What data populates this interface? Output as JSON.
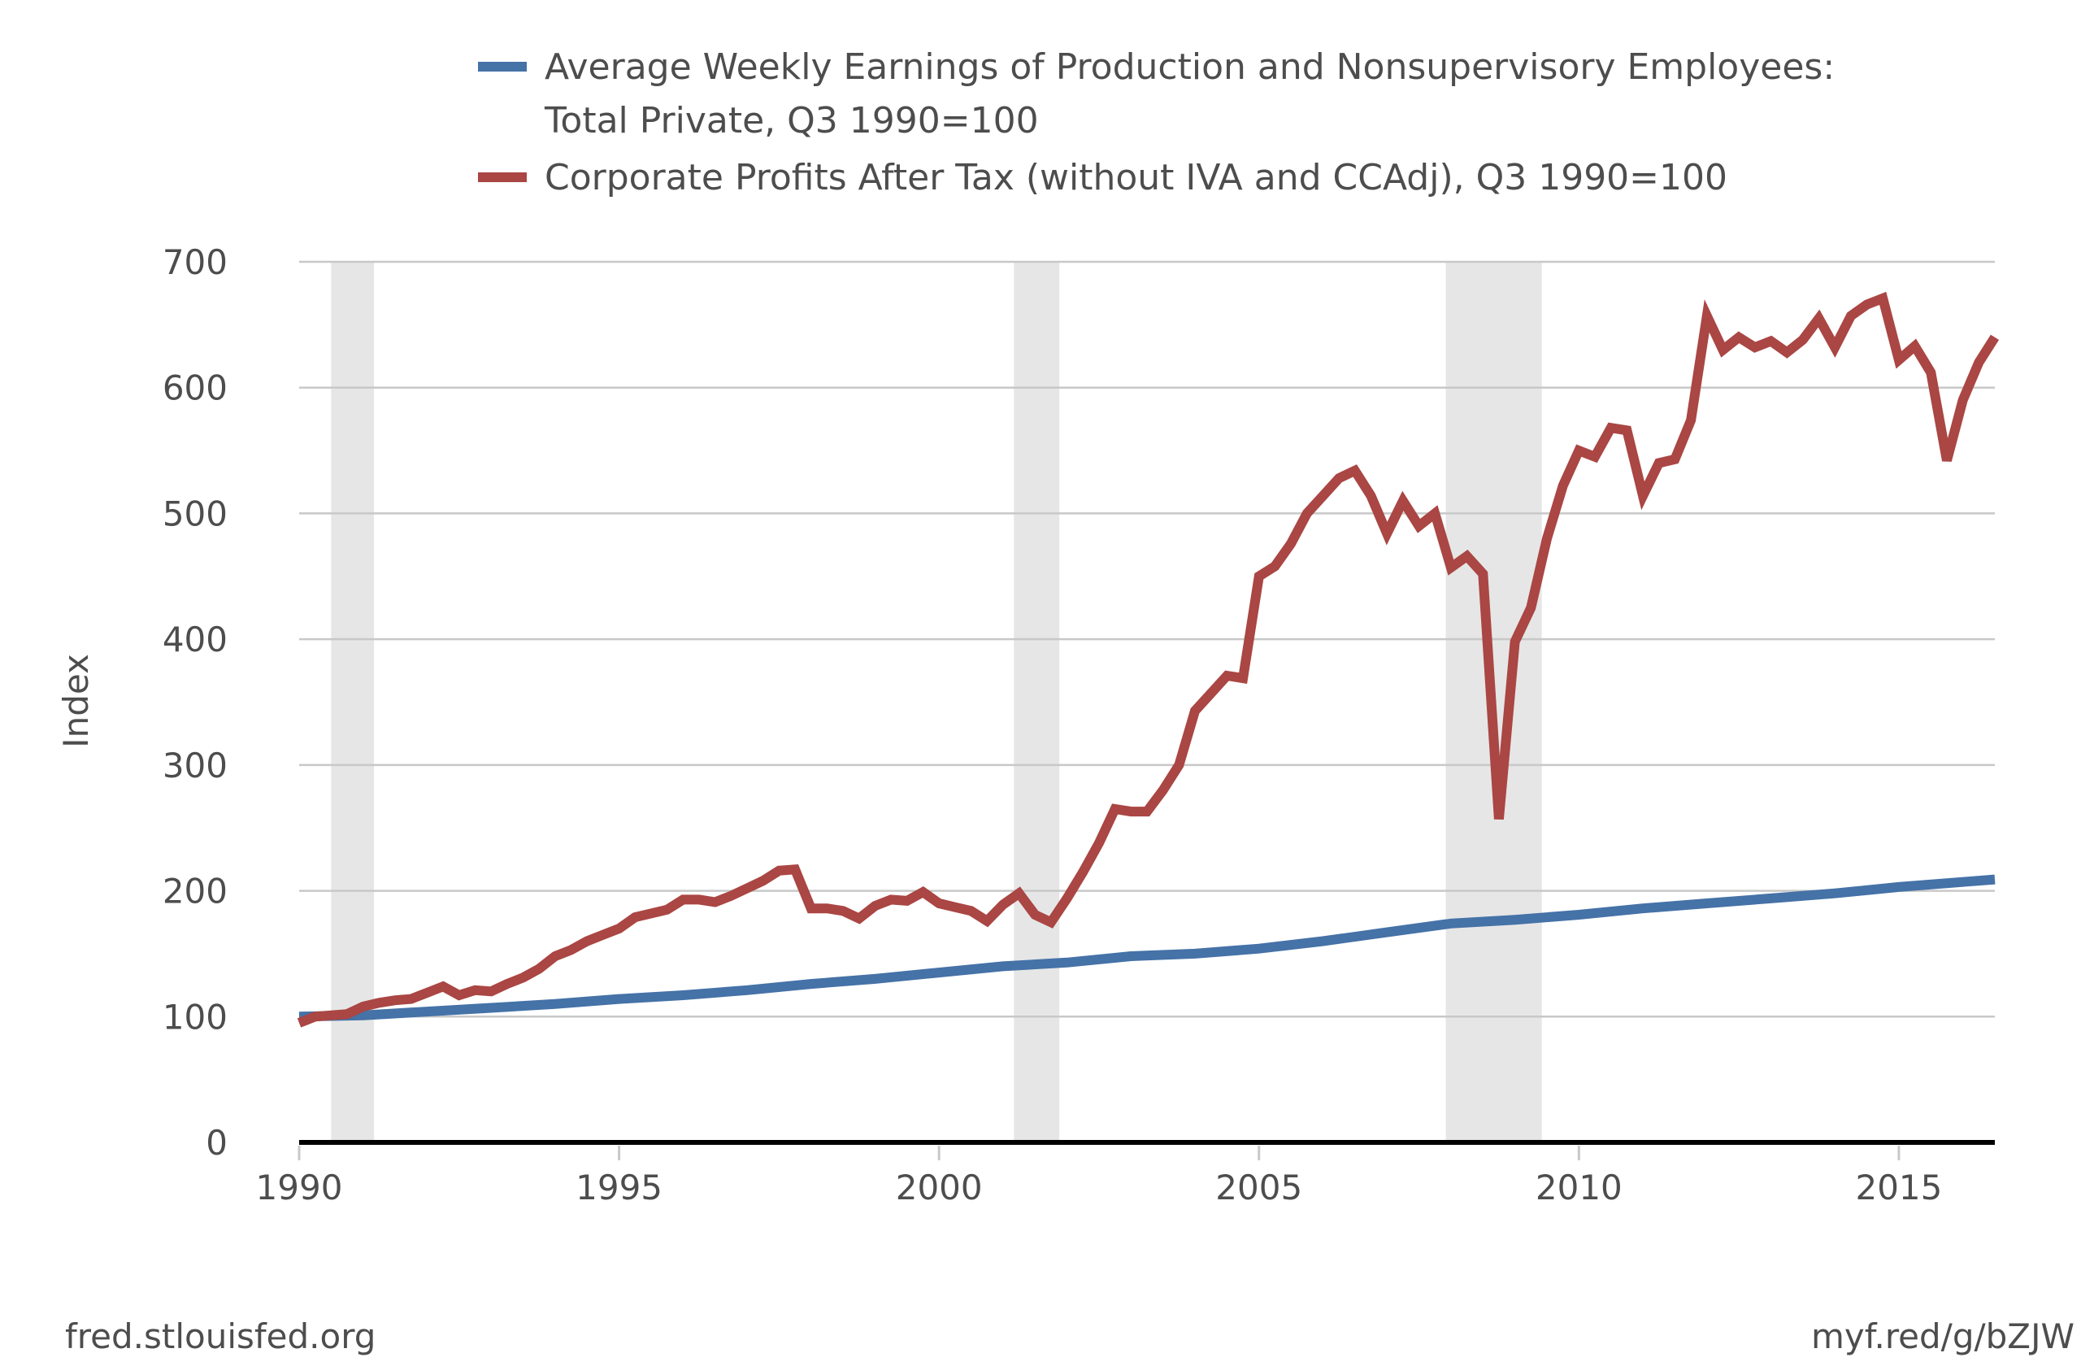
{
  "chart_data": {
    "type": "line",
    "title": "",
    "xlabel": "",
    "ylabel": "Index",
    "xlim": [
      1990.0,
      2016.5
    ],
    "ylim": [
      0,
      700
    ],
    "grid": true,
    "legend_position": "top",
    "y_ticks": [
      0,
      100,
      200,
      300,
      400,
      500,
      600,
      700
    ],
    "x_ticks": [
      1990,
      1995,
      2000,
      2005,
      2010,
      2015
    ],
    "recessions": [
      [
        1990.5,
        1991.17
      ],
      [
        2001.17,
        2001.88
      ],
      [
        2007.92,
        2009.42
      ]
    ],
    "series": [
      {
        "name": "Average Weekly Earnings of Production and Nonsupervisory Employees: Total Private, Q3 1990=100",
        "legend_lines": [
          "Average Weekly Earnings of Production and Nonsupervisory Employees:",
          "Total Private, Q3 1990=100"
        ],
        "color": "#4572a7",
        "points": [
          [
            1990.0,
            100
          ],
          [
            1991.0,
            101
          ],
          [
            1992.0,
            104
          ],
          [
            1993.0,
            107
          ],
          [
            1994.0,
            110
          ],
          [
            1995.0,
            114
          ],
          [
            1996.0,
            117
          ],
          [
            1997.0,
            121
          ],
          [
            1998.0,
            126
          ],
          [
            1999.0,
            130
          ],
          [
            2000.0,
            135
          ],
          [
            2001.0,
            140
          ],
          [
            2002.0,
            143
          ],
          [
            2003.0,
            148
          ],
          [
            2004.0,
            150
          ],
          [
            2005.0,
            154
          ],
          [
            2006.0,
            160
          ],
          [
            2007.0,
            167
          ],
          [
            2008.0,
            174
          ],
          [
            2009.0,
            177
          ],
          [
            2010.0,
            181
          ],
          [
            2011.0,
            186
          ],
          [
            2012.0,
            190
          ],
          [
            2013.0,
            194
          ],
          [
            2014.0,
            198
          ],
          [
            2015.0,
            203
          ],
          [
            2016.0,
            207
          ],
          [
            2016.5,
            209
          ]
        ]
      },
      {
        "name": "Corporate Profits After Tax (without IVA and CCAdj), Q3 1990=100",
        "legend_lines": [
          "Corporate Profits After Tax (without IVA and CCAdj), Q3 1990=100"
        ],
        "color": "#aa4643",
        "points": [
          [
            1990.0,
            95
          ],
          [
            1990.25,
            100
          ],
          [
            1990.5,
            101
          ],
          [
            1990.75,
            102
          ],
          [
            1991.0,
            108
          ],
          [
            1991.25,
            111
          ],
          [
            1991.5,
            113
          ],
          [
            1991.75,
            114
          ],
          [
            1992.0,
            119
          ],
          [
            1992.25,
            124
          ],
          [
            1992.5,
            117
          ],
          [
            1992.75,
            121
          ],
          [
            1993.0,
            120
          ],
          [
            1993.25,
            126
          ],
          [
            1993.5,
            131
          ],
          [
            1993.75,
            138
          ],
          [
            1994.0,
            148
          ],
          [
            1994.25,
            153
          ],
          [
            1994.5,
            160
          ],
          [
            1994.75,
            165
          ],
          [
            1995.0,
            170
          ],
          [
            1995.25,
            179
          ],
          [
            1995.5,
            182
          ],
          [
            1995.75,
            185
          ],
          [
            1996.0,
            193
          ],
          [
            1996.25,
            193
          ],
          [
            1996.5,
            191
          ],
          [
            1996.75,
            196
          ],
          [
            1997.0,
            202
          ],
          [
            1997.25,
            208
          ],
          [
            1997.5,
            216
          ],
          [
            1997.75,
            217
          ],
          [
            1998.0,
            186
          ],
          [
            1998.25,
            186
          ],
          [
            1998.5,
            184
          ],
          [
            1998.75,
            178
          ],
          [
            1999.0,
            188
          ],
          [
            1999.25,
            193
          ],
          [
            1999.5,
            192
          ],
          [
            1999.75,
            199
          ],
          [
            2000.0,
            190
          ],
          [
            2000.25,
            187
          ],
          [
            2000.5,
            184
          ],
          [
            2000.75,
            176
          ],
          [
            2001.0,
            189
          ],
          [
            2001.25,
            198
          ],
          [
            2001.5,
            181
          ],
          [
            2001.75,
            175
          ],
          [
            2002.0,
            194
          ],
          [
            2002.25,
            215
          ],
          [
            2002.5,
            238
          ],
          [
            2002.75,
            265
          ],
          [
            2003.0,
            263
          ],
          [
            2003.25,
            263
          ],
          [
            2003.5,
            280
          ],
          [
            2003.75,
            300
          ],
          [
            2004.0,
            343
          ],
          [
            2004.25,
            357
          ],
          [
            2004.5,
            371
          ],
          [
            2004.75,
            369
          ],
          [
            2005.0,
            450
          ],
          [
            2005.25,
            458
          ],
          [
            2005.5,
            476
          ],
          [
            2005.75,
            500
          ],
          [
            2006.0,
            514
          ],
          [
            2006.25,
            528
          ],
          [
            2006.5,
            534
          ],
          [
            2006.75,
            514
          ],
          [
            2007.0,
            484
          ],
          [
            2007.25,
            510
          ],
          [
            2007.5,
            490
          ],
          [
            2007.75,
            500
          ],
          [
            2008.0,
            457
          ],
          [
            2008.25,
            466
          ],
          [
            2008.5,
            452
          ],
          [
            2008.75,
            257
          ],
          [
            2009.0,
            398
          ],
          [
            2009.25,
            425
          ],
          [
            2009.5,
            480
          ],
          [
            2009.75,
            522
          ],
          [
            2010.0,
            550
          ],
          [
            2010.25,
            545
          ],
          [
            2010.5,
            568
          ],
          [
            2010.75,
            566
          ],
          [
            2011.0,
            514
          ],
          [
            2011.25,
            540
          ],
          [
            2011.5,
            543
          ],
          [
            2011.75,
            574
          ],
          [
            2012.0,
            657
          ],
          [
            2012.25,
            630
          ],
          [
            2012.5,
            640
          ],
          [
            2012.75,
            632
          ],
          [
            2013.0,
            637
          ],
          [
            2013.25,
            628
          ],
          [
            2013.5,
            638
          ],
          [
            2013.75,
            655
          ],
          [
            2014.0,
            632
          ],
          [
            2014.25,
            657
          ],
          [
            2014.5,
            666
          ],
          [
            2014.75,
            671
          ],
          [
            2015.0,
            622
          ],
          [
            2015.25,
            633
          ],
          [
            2015.5,
            612
          ],
          [
            2015.75,
            542
          ],
          [
            2016.0,
            590
          ],
          [
            2016.25,
            620
          ],
          [
            2016.5,
            640
          ]
        ]
      }
    ]
  },
  "footer": {
    "source": "fred.stlouisfed.org",
    "link": "myf.red/g/bZJW"
  }
}
